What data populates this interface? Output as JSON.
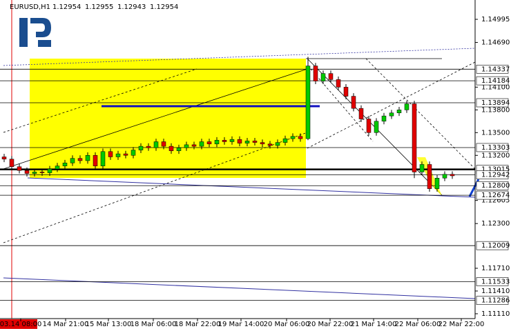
{
  "chart_data": {
    "type": "candlestick",
    "title": "EURUSD,H1",
    "header_prices": [
      1.12954,
      1.12955,
      1.12943,
      1.12954
    ],
    "open": [
      1.1318,
      1.1315,
      1.1305,
      1.13,
      1.1296,
      1.1298,
      1.1297,
      1.1302,
      1.1306,
      1.131,
      1.1316,
      1.1313,
      1.132,
      1.1306,
      1.1325,
      1.1318,
      1.1322,
      1.132,
      1.1327,
      1.1332,
      1.133,
      1.1338,
      1.1332,
      1.1326,
      1.133,
      1.1334,
      1.1332,
      1.1338,
      1.1335,
      1.134,
      1.1338,
      1.1341,
      1.1336,
      1.1339,
      1.1337,
      1.1335,
      1.1333,
      1.1337,
      1.1342,
      1.1345,
      1.1342,
      1.1438,
      1.1418,
      1.1428,
      1.142,
      1.141,
      1.1398,
      1.1382,
      1.1368,
      1.135,
      1.1365,
      1.1372,
      1.1376,
      1.138,
      1.1388,
      1.1298,
      1.1308,
      1.1276,
      1.129,
      1.1295
    ],
    "high": [
      1.1322,
      1.1319,
      1.1309,
      1.1304,
      1.1302,
      1.1302,
      1.1306,
      1.131,
      1.1314,
      1.132,
      1.132,
      1.1324,
      1.1324,
      1.1329,
      1.1329,
      1.1326,
      1.1326,
      1.1331,
      1.1336,
      1.1336,
      1.1342,
      1.1342,
      1.1336,
      1.1334,
      1.1338,
      1.1338,
      1.1342,
      1.1342,
      1.1344,
      1.1344,
      1.1345,
      1.1345,
      1.1343,
      1.1343,
      1.1341,
      1.1339,
      1.1341,
      1.1346,
      1.1349,
      1.1349,
      1.145,
      1.1442,
      1.1432,
      1.1432,
      1.1424,
      1.1414,
      1.1402,
      1.1386,
      1.1372,
      1.1369,
      1.1376,
      1.138,
      1.1384,
      1.1392,
      1.1392,
      1.1312,
      1.1312,
      1.1294,
      1.1299,
      1.1299
    ],
    "low": [
      1.1311,
      1.1301,
      1.1296,
      1.1292,
      1.1292,
      1.1293,
      1.1293,
      1.1298,
      1.1302,
      1.1306,
      1.1309,
      1.1309,
      1.1302,
      1.1302,
      1.1314,
      1.1314,
      1.1316,
      1.1316,
      1.1323,
      1.1326,
      1.1326,
      1.1328,
      1.1322,
      1.1322,
      1.1326,
      1.1328,
      1.1328,
      1.1331,
      1.1331,
      1.1334,
      1.1334,
      1.1332,
      1.1332,
      1.1333,
      1.1331,
      1.1329,
      1.1329,
      1.1333,
      1.1338,
      1.1338,
      1.134,
      1.1414,
      1.1414,
      1.1416,
      1.1406,
      1.1394,
      1.1378,
      1.1364,
      1.1346,
      1.1346,
      1.1361,
      1.1368,
      1.1372,
      1.1376,
      1.129,
      1.1294,
      1.1272,
      1.1272,
      1.1286,
      1.1289
    ],
    "close": [
      1.1315,
      1.1305,
      1.13,
      1.1296,
      1.1298,
      1.1297,
      1.1302,
      1.1306,
      1.131,
      1.1316,
      1.1313,
      1.132,
      1.1306,
      1.1325,
      1.1318,
      1.1322,
      1.132,
      1.1327,
      1.1332,
      1.133,
      1.1338,
      1.1332,
      1.1326,
      1.133,
      1.1334,
      1.1332,
      1.1338,
      1.1335,
      1.134,
      1.1338,
      1.1341,
      1.1336,
      1.1339,
      1.1337,
      1.1335,
      1.1333,
      1.1337,
      1.1342,
      1.1345,
      1.1342,
      1.1438,
      1.1418,
      1.1428,
      1.142,
      1.141,
      1.1398,
      1.1382,
      1.1368,
      1.135,
      1.1365,
      1.1372,
      1.1376,
      1.138,
      1.1388,
      1.1298,
      1.1308,
      1.1276,
      1.129,
      1.1295,
      1.1293
    ],
    "up_color": "#00c800",
    "down_color": "#e00000",
    "ylim": [
      1.11046,
      1.1525
    ],
    "yticks": [
      1.14995,
      {
        "value": 1.1469,
        "label": "1.14690"
      },
      {
        "value": 1.141,
        "label": "1.14100"
      },
      {
        "value": 1.138,
        "label": "1.13800"
      },
      {
        "value": 1.135,
        "label": "1.13500"
      },
      {
        "value": 1.132,
        "label": "1.13200"
      },
      1.12605,
      {
        "value": 1.123,
        "label": "1.12300"
      },
      {
        "value": 1.1171,
        "label": "1.11710"
      },
      {
        "value": 1.1141,
        "label": "1.11410"
      },
      {
        "value": 1.1111,
        "label": "1.11110"
      }
    ],
    "levels": [
      1.14337,
      1.14184,
      1.13894,
      1.13303,
      1.13015,
      1.12942,
      {
        "value": 1.128,
        "label": "1.12800"
      },
      1.12674,
      1.12009,
      1.11533,
      1.11286
    ],
    "time_labels": [
      "03.14 08:00",
      "14 Mar 21:00",
      "15 Mar 13:00",
      "18 Mar 06:00",
      "18 Mar 22:00",
      "19 Mar 14:00",
      "20 Mar 06:00",
      "20 Mar 22:00",
      "21 Mar 14:00",
      "22 Mar 06:00",
      "22 Mar 22:00"
    ]
  }
}
